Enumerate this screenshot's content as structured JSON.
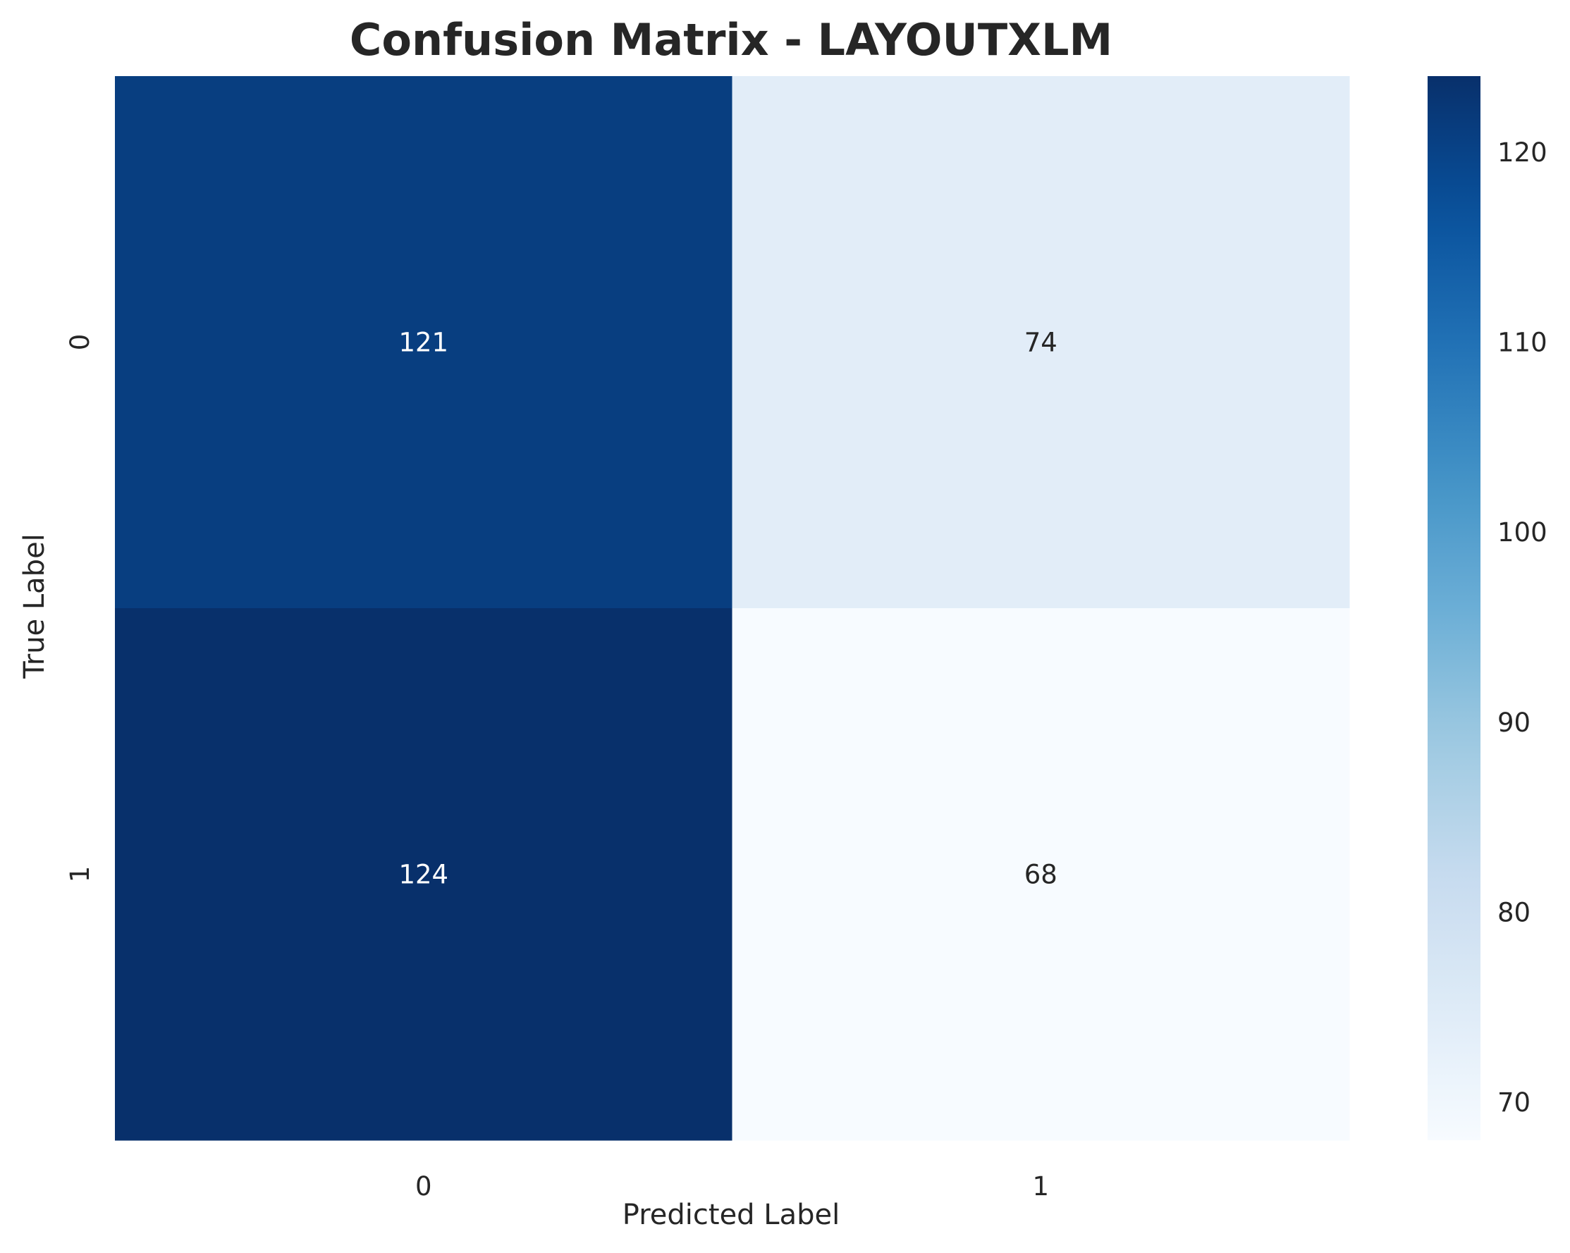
{
  "chart_data": {
    "type": "heatmap",
    "title": "Confusion Matrix - LAYOUTXLM",
    "xlabel": "Predicted Label",
    "ylabel": "True Label",
    "x_categories": [
      "0",
      "1"
    ],
    "y_categories": [
      "0",
      "1"
    ],
    "values": [
      [
        121,
        74
      ],
      [
        124,
        68
      ]
    ],
    "colormap": "Blues",
    "colorbar": {
      "range": [
        68,
        124
      ],
      "ticks": [
        70,
        80,
        90,
        100,
        110,
        120
      ]
    },
    "colors": {
      "annotation_dark_cell": "#ffffff",
      "annotation_light_cell": "#262626",
      "text": "#262626"
    }
  }
}
